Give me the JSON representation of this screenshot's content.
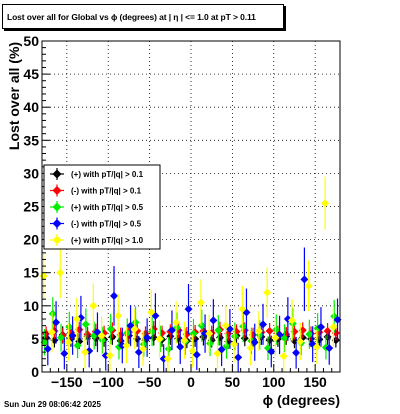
{
  "footer": {
    "timestamp": "Sun Jun 29 08:06:42 2025"
  },
  "chart_data": {
    "type": "scatter",
    "title": "Lost over all for Global vs ϕ (degrees) at |  η  | <= 1.0 at pT > 0.11",
    "xlabel": "ϕ (degrees)",
    "ylabel": "Lost over all (%)",
    "xlim": [
      -180,
      180
    ],
    "ylim": [
      0,
      50
    ],
    "x_ticks": [
      -150,
      -100,
      -50,
      0,
      50,
      100,
      150
    ],
    "x_tick_labels": [
      "−150",
      "−100",
      "−50",
      "0",
      "50",
      "100",
      "150"
    ],
    "y_ticks": [
      0,
      5,
      10,
      15,
      20,
      25,
      30,
      35,
      40,
      45,
      50
    ],
    "grid": true,
    "legend_position": "left-middle",
    "series": [
      {
        "name": "(+) with pT/|q| > 0.1",
        "color": "#000000",
        "x": [
          -175,
          -165,
          -155,
          -145,
          -135,
          -125,
          -115,
          -105,
          -95,
          -85,
          -75,
          -65,
          -55,
          -45,
          -35,
          -25,
          -15,
          -5,
          5,
          15,
          25,
          35,
          45,
          55,
          65,
          75,
          85,
          95,
          105,
          115,
          125,
          135,
          145,
          155,
          165,
          175
        ],
        "y": [
          5.2,
          4.8,
          5.6,
          5.0,
          4.6,
          5.4,
          5.1,
          4.9,
          5.3,
          4.7,
          5.5,
          5.0,
          4.8,
          5.2,
          4.9,
          5.4,
          5.1,
          4.7,
          5.0,
          5.3,
          4.8,
          5.2,
          4.6,
          5.5,
          5.1,
          4.9,
          5.3,
          4.8,
          5.0,
          5.4,
          4.7,
          5.2,
          5.0,
          4.9,
          5.3,
          4.8
        ],
        "err": [
          1.2,
          1.1,
          1.3,
          1.2,
          1.1,
          1.3,
          1.2,
          1.1,
          1.2,
          1.1,
          1.3,
          1.2,
          1.1,
          1.2,
          1.1,
          1.3,
          1.2,
          1.1,
          1.2,
          1.3,
          1.1,
          1.2,
          1.1,
          1.3,
          1.2,
          1.1,
          1.2,
          1.1,
          1.2,
          1.3,
          1.1,
          1.2,
          1.2,
          1.1,
          1.2,
          1.1
        ]
      },
      {
        "name": "(-) with pT/|q| > 0.1",
        "color": "#ff0000",
        "x": [
          -175,
          -165,
          -155,
          -145,
          -135,
          -125,
          -115,
          -105,
          -95,
          -85,
          -75,
          -65,
          -55,
          -45,
          -35,
          -25,
          -15,
          -5,
          5,
          15,
          25,
          35,
          45,
          55,
          65,
          75,
          85,
          95,
          105,
          115,
          125,
          135,
          145,
          155,
          165,
          175
        ],
        "y": [
          5.8,
          6.2,
          5.5,
          6.0,
          6.4,
          5.7,
          6.1,
          5.9,
          6.3,
          5.6,
          6.0,
          6.2,
          5.8,
          6.5,
          5.9,
          6.1,
          6.3,
          5.7,
          6.0,
          6.2,
          5.9,
          6.4,
          5.8,
          6.1,
          6.3,
          5.6,
          6.0,
          6.2,
          5.9,
          5.7,
          6.1,
          6.3,
          5.8,
          6.0,
          6.2,
          5.9
        ],
        "err": [
          1.1,
          1.2,
          1.1,
          1.1,
          1.2,
          1.1,
          1.2,
          1.1,
          1.2,
          1.1,
          1.1,
          1.2,
          1.1,
          1.2,
          1.1,
          1.1,
          1.2,
          1.1,
          1.1,
          1.2,
          1.1,
          1.2,
          1.1,
          1.1,
          1.2,
          1.1,
          1.1,
          1.2,
          1.1,
          1.1,
          1.2,
          1.2,
          1.1,
          1.1,
          1.2,
          1.1
        ]
      },
      {
        "name": "(+) with pT/|q| > 0.5",
        "color": "#00ee00",
        "x": [
          -177,
          -167,
          -157,
          -147,
          -137,
          -127,
          -117,
          -107,
          -97,
          -87,
          -77,
          -67,
          -57,
          -47,
          -37,
          -27,
          -17,
          -7,
          3,
          13,
          23,
          33,
          43,
          53,
          63,
          73,
          83,
          93,
          103,
          113,
          123,
          133,
          143,
          153,
          163,
          173
        ],
        "y": [
          4.5,
          8.8,
          5.2,
          6.8,
          4.0,
          7.2,
          5.5,
          4.8,
          6.5,
          3.8,
          5.9,
          7.5,
          4.2,
          6.1,
          5.0,
          3.5,
          6.7,
          4.6,
          5.8,
          7.0,
          4.3,
          6.3,
          3.9,
          5.4,
          6.9,
          4.7,
          5.6,
          3.6,
          6.4,
          5.1,
          7.3,
          4.4,
          5.7,
          6.6,
          3.7,
          8.4
        ],
        "err": [
          2.0,
          2.5,
          2.1,
          2.3,
          1.9,
          2.4,
          2.1,
          2.0,
          2.3,
          1.9,
          2.2,
          2.4,
          1.9,
          2.2,
          2.0,
          1.8,
          2.3,
          2.0,
          2.2,
          2.4,
          1.9,
          2.3,
          1.9,
          2.1,
          2.4,
          2.0,
          2.2,
          1.8,
          2.3,
          2.1,
          2.4,
          1.9,
          2.2,
          2.3,
          1.8,
          2.5
        ]
      },
      {
        "name": "(-) with pT/|q| > 0.5",
        "color": "#0000ff",
        "x": [
          -173,
          -163,
          -153,
          -143,
          -133,
          -123,
          -113,
          -103,
          -93,
          -83,
          -73,
          -63,
          -53,
          -43,
          -33,
          -23,
          -13,
          -3,
          7,
          17,
          27,
          37,
          47,
          57,
          67,
          77,
          87,
          97,
          107,
          117,
          127,
          137,
          147,
          157,
          167,
          177
        ],
        "y": [
          3.5,
          7.5,
          2.8,
          5.5,
          8.2,
          3.2,
          6.0,
          2.5,
          11.5,
          4.0,
          7.0,
          3.0,
          5.2,
          8.5,
          2.0,
          6.3,
          3.8,
          9.5,
          2.6,
          5.8,
          7.8,
          3.4,
          6.5,
          2.2,
          9.0,
          4.5,
          7.2,
          3.1,
          5.6,
          8.0,
          2.9,
          14.0,
          4.2,
          6.8,
          3.6,
          7.9
        ],
        "err": [
          2.5,
          3.2,
          2.4,
          2.9,
          3.3,
          2.5,
          3.0,
          2.3,
          4.5,
          2.7,
          3.1,
          2.4,
          2.9,
          3.4,
          2.2,
          3.0,
          2.6,
          3.8,
          2.3,
          2.9,
          3.2,
          2.5,
          3.0,
          2.2,
          3.6,
          2.8,
          3.1,
          2.4,
          2.9,
          3.3,
          2.4,
          4.8,
          2.7,
          3.0,
          2.5,
          3.2
        ]
      },
      {
        "name": "(+) with pT/|q| > 1.0",
        "color": "#ffff00",
        "x": [
          -178,
          -168,
          -158,
          -148,
          -138,
          -128,
          -118,
          -108,
          -98,
          -88,
          -78,
          -68,
          -58,
          -48,
          -38,
          -28,
          -18,
          -8,
          2,
          12,
          22,
          32,
          42,
          52,
          62,
          72,
          82,
          92,
          102,
          112,
          122,
          132,
          142,
          152,
          162,
          172
        ],
        "y": [
          14.5,
          6.0,
          15.0,
          4.5,
          8.0,
          3.0,
          10.0,
          5.5,
          2.5,
          8.5,
          4.0,
          6.5,
          3.5,
          9.0,
          5.0,
          2.0,
          7.5,
          4.8,
          3.2,
          10.5,
          5.8,
          2.8,
          7.0,
          4.2,
          9.5,
          3.6,
          6.2,
          12.0,
          5.2,
          2.4,
          7.8,
          4.6,
          13.0,
          3.8,
          25.5,
          6.8
        ],
        "err": [
          3.5,
          3.0,
          3.8,
          2.8,
          3.2,
          2.5,
          3.4,
          2.9,
          2.3,
          3.3,
          2.7,
          3.0,
          2.6,
          3.4,
          2.8,
          2.2,
          3.2,
          2.8,
          2.5,
          3.5,
          2.9,
          2.4,
          3.1,
          2.7,
          3.5,
          2.6,
          3.0,
          3.8,
          2.8,
          2.3,
          3.2,
          2.8,
          3.8,
          2.6,
          4.0,
          3.0
        ]
      }
    ]
  }
}
